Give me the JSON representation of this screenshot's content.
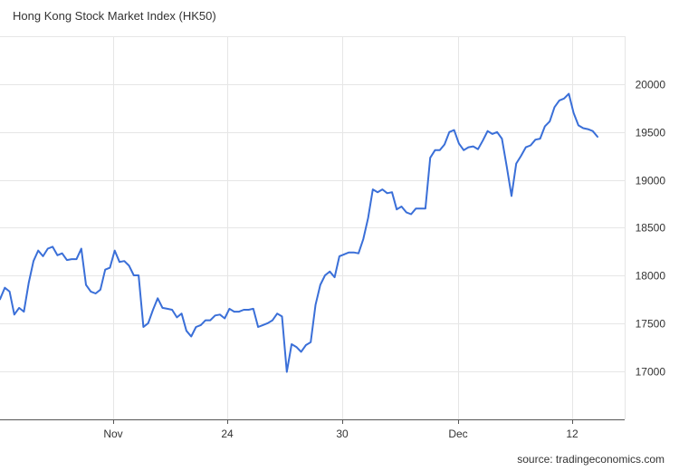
{
  "header": {
    "title": "Hong Kong Stock Market Index (HK50)"
  },
  "footer": {
    "source": "source: tradingeconomics.com"
  },
  "colors": {
    "line": "#3a6fd8",
    "grid": "#e6e6e6",
    "axis": "#555555",
    "text": "#333333"
  },
  "chart_data": {
    "type": "line",
    "title": "Hong Kong Stock Market Index (HK50)",
    "xlabel": "",
    "ylabel": "",
    "x_tick_labels": [
      "Nov",
      "24",
      "30",
      "Dec",
      "12"
    ],
    "y_ticks": [
      17000,
      17500,
      18000,
      18500,
      19000,
      19500,
      20000
    ],
    "ylim": [
      16500,
      20500
    ],
    "grid": true,
    "y_axis_side": "right",
    "series": [
      {
        "values": [
          17750,
          17870,
          17830,
          17590,
          17660,
          17620,
          17920,
          18150,
          18260,
          18200,
          18280,
          18300,
          18210,
          18230,
          18160,
          18170,
          18170,
          18280,
          17900,
          17830,
          17810,
          17850,
          18060,
          18080,
          18260,
          18140,
          18150,
          18100,
          18000,
          18000,
          17460,
          17500,
          17640,
          17760,
          17660,
          17650,
          17640,
          17560,
          17600,
          17420,
          17360,
          17460,
          17480,
          17530,
          17530,
          17580,
          17590,
          17550,
          17650,
          17620,
          17620,
          17640,
          17640,
          17650,
          17460,
          17480,
          17500,
          17530,
          17600,
          17570,
          16990,
          17280,
          17250,
          17200,
          17270,
          17300,
          17690,
          17900,
          18000,
          18040,
          17980,
          18200,
          18220,
          18240,
          18240,
          18230,
          18380,
          18600,
          18900,
          18870,
          18900,
          18860,
          18870,
          18690,
          18720,
          18660,
          18640,
          18700,
          18700,
          18700,
          19230,
          19310,
          19310,
          19370,
          19500,
          19520,
          19380,
          19310,
          19340,
          19350,
          19320,
          19410,
          19510,
          19480,
          19500,
          19430,
          19140,
          18830,
          19170,
          19250,
          19340,
          19360,
          19420,
          19430,
          19560,
          19610,
          19760,
          19830,
          19850,
          19900,
          19700,
          19570,
          19540,
          19530,
          19510,
          19450
        ]
      }
    ]
  }
}
